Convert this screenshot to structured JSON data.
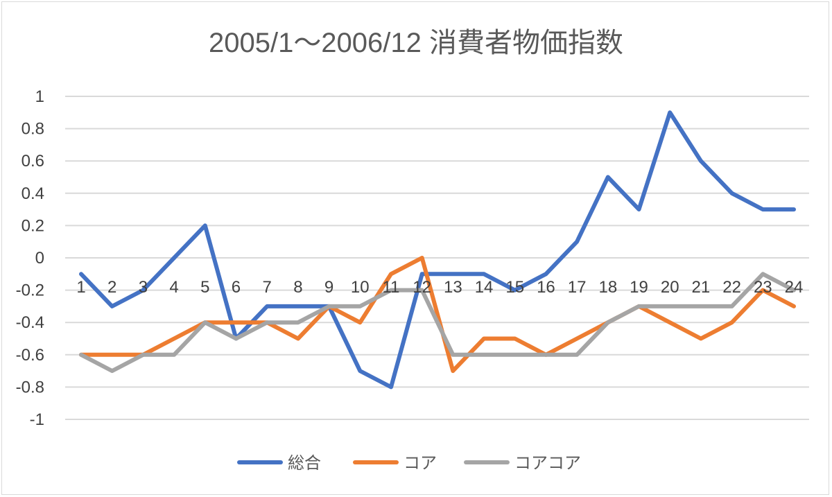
{
  "chart_data": {
    "type": "line",
    "title": "2005/1〜2006/12 消費者物価指数",
    "xlabel": "",
    "ylabel": "",
    "categories": [
      "1",
      "2",
      "3",
      "4",
      "5",
      "6",
      "7",
      "8",
      "9",
      "10",
      "11",
      "12",
      "13",
      "14",
      "15",
      "16",
      "17",
      "18",
      "19",
      "20",
      "21",
      "22",
      "23",
      "24"
    ],
    "ylim": [
      -1,
      1
    ],
    "yticks": [
      "1",
      "0.8",
      "0.6",
      "0.4",
      "0.2",
      "0",
      "-0.2",
      "-0.4",
      "-0.6",
      "-0.8",
      "-1"
    ],
    "grid": true,
    "legend_position": "bottom",
    "series": [
      {
        "name": "総合",
        "color": "#4472C4",
        "values": [
          -0.1,
          -0.3,
          -0.2,
          0,
          0.2,
          -0.5,
          -0.3,
          -0.3,
          -0.3,
          -0.7,
          -0.8,
          -0.1,
          -0.1,
          -0.1,
          -0.2,
          -0.1,
          0.1,
          0.5,
          0.3,
          0.9,
          0.6,
          0.4,
          0.3,
          0.3
        ]
      },
      {
        "name": "コア",
        "color": "#ED7D31",
        "values": [
          -0.6,
          -0.6,
          -0.6,
          -0.5,
          -0.4,
          -0.4,
          -0.4,
          -0.5,
          -0.3,
          -0.4,
          -0.1,
          0,
          -0.7,
          -0.5,
          -0.5,
          -0.6,
          -0.5,
          -0.4,
          -0.3,
          -0.4,
          -0.5,
          -0.4,
          -0.2,
          -0.3
        ]
      },
      {
        "name": "コアコア",
        "color": "#A5A5A5",
        "values": [
          -0.6,
          -0.7,
          -0.6,
          -0.6,
          -0.4,
          -0.5,
          -0.4,
          -0.4,
          -0.3,
          -0.3,
          -0.2,
          -0.2,
          -0.6,
          -0.6,
          -0.6,
          -0.6,
          -0.6,
          -0.4,
          -0.3,
          -0.3,
          -0.3,
          -0.3,
          -0.1,
          -0.2
        ]
      }
    ]
  }
}
